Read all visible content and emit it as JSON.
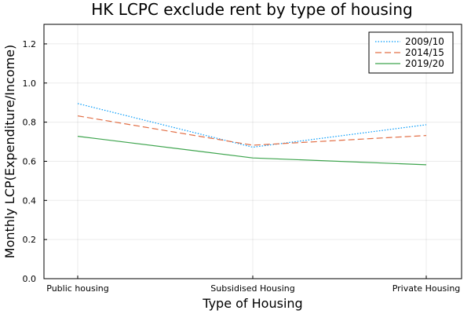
{
  "chart_data": {
    "type": "line",
    "title": "HK LCPC exclude rent by type of housing",
    "xlabel": "Type of Housing",
    "ylabel": "Monthly LCP(Expenditure/Income)",
    "categories": [
      "Public housing",
      "Subsidised Housing",
      "Private Housing"
    ],
    "ylim": [
      0,
      1.3
    ],
    "yticks": [
      "0.0",
      "0.2",
      "0.4",
      "0.6",
      "0.8",
      "1.0",
      "1.2"
    ],
    "grid": true,
    "legend_position": "top-right",
    "series": [
      {
        "name": "2009/10",
        "values": [
          0.895,
          0.672,
          0.787
        ],
        "color": "#009AFA",
        "dash": "dotted"
      },
      {
        "name": "2014/15",
        "values": [
          0.832,
          0.682,
          0.732
        ],
        "color": "#E26F46",
        "dash": "dashed"
      },
      {
        "name": "2019/20",
        "values": [
          0.728,
          0.617,
          0.582
        ],
        "color": "#3DA44D",
        "dash": "solid"
      }
    ]
  }
}
